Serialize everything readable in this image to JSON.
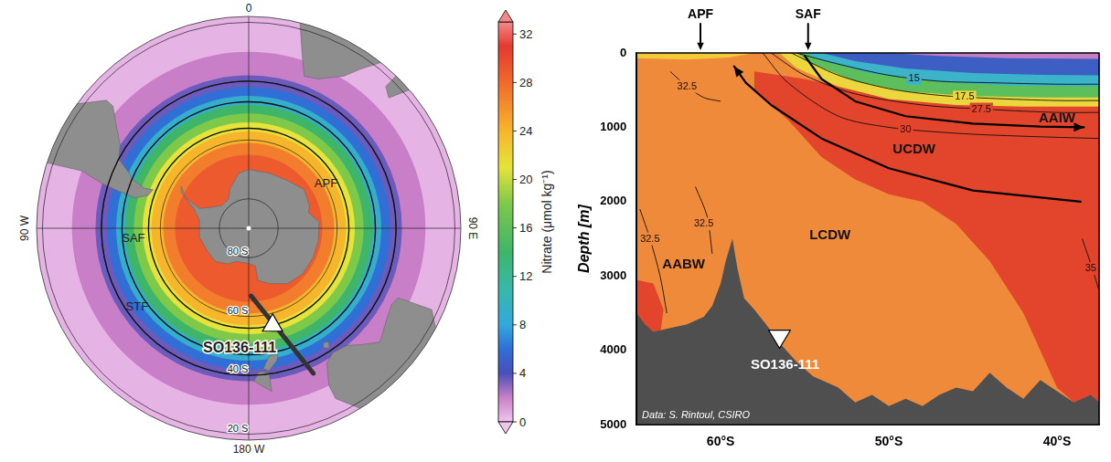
{
  "map": {
    "colorbar": {
      "label": "Nitrate (μmol kg⁻¹)",
      "range": [
        0,
        33
      ],
      "ticks": [
        0,
        4,
        8,
        12,
        16,
        20,
        24,
        28,
        32
      ],
      "colorscale": [
        {
          "value": 0,
          "color": "#f0c6ee"
        },
        {
          "value": 2,
          "color": "#c97fc7"
        },
        {
          "value": 4,
          "color": "#4a4fb8"
        },
        {
          "value": 6,
          "color": "#2f6fd6"
        },
        {
          "value": 8,
          "color": "#33a8dc"
        },
        {
          "value": 11,
          "color": "#37b9a8"
        },
        {
          "value": 14,
          "color": "#3fb56a"
        },
        {
          "value": 18,
          "color": "#7ec84a"
        },
        {
          "value": 21,
          "color": "#e6e33a"
        },
        {
          "value": 24,
          "color": "#f7b52c"
        },
        {
          "value": 28,
          "color": "#f06a2c"
        },
        {
          "value": 31,
          "color": "#e33a2e"
        },
        {
          "value": 33,
          "color": "#f28a8a"
        }
      ]
    },
    "nitrate_rings": [
      {
        "lat": -18,
        "nitrate": 0.5
      },
      {
        "lat": -30,
        "nitrate": 2
      },
      {
        "lat": -38,
        "nitrate": 3.5
      },
      {
        "lat": -42,
        "nitrate": 6
      },
      {
        "lat": -45,
        "nitrate": 9
      },
      {
        "lat": -48,
        "nitrate": 14
      },
      {
        "lat": -51,
        "nitrate": 18
      },
      {
        "lat": -54,
        "nitrate": 21
      },
      {
        "lat": -57,
        "nitrate": 24
      },
      {
        "lat": -61,
        "nitrate": 27
      },
      {
        "lat": -65,
        "nitrate": 29
      }
    ],
    "graticule": {
      "parallels": [
        {
          "lat": -80,
          "label": "80 S"
        },
        {
          "lat": -60,
          "label": "60 S"
        },
        {
          "lat": -40,
          "label": "40 S"
        },
        {
          "lat": -20,
          "label": "20 S"
        }
      ],
      "meridians": [
        {
          "lon": 0,
          "label": "0"
        },
        {
          "lon": 90,
          "label": "90 E"
        },
        {
          "lon": 180,
          "label": "180 W"
        },
        {
          "lon": -90,
          "label": "90 W"
        }
      ]
    },
    "fronts": [
      {
        "label": "APF",
        "lat": -56
      },
      {
        "label": "SAF",
        "lat": -47
      },
      {
        "label": "STF",
        "lat": -40
      }
    ],
    "section_line": {
      "start": {
        "lon": 178,
        "lat": -67
      },
      "end": {
        "lon": 156,
        "lat": -36
      }
    },
    "station": {
      "label": "SO136-111",
      "lon": 166,
      "lat": -56.5
    }
  },
  "chart_data": {
    "type": "section",
    "y_label": "Depth [m]",
    "xlim": [
      -65,
      -37.5
    ],
    "xticks": [
      {
        "value": -60,
        "label": "60°S"
      },
      {
        "value": -50,
        "label": "50°S"
      },
      {
        "value": -40,
        "label": "40°S"
      }
    ],
    "ylim": [
      0,
      5000
    ],
    "yticks": [
      0,
      1000,
      2000,
      3000,
      4000,
      5000
    ],
    "grid": false,
    "fronts": [
      {
        "label": "APF",
        "lat": -61.2
      },
      {
        "label": "SAF",
        "lat": -54.8
      }
    ],
    "regions": [
      {
        "color": "#ef8a3a",
        "points": [
          [
            -65,
            0
          ],
          [
            -37.5,
            0
          ],
          [
            -37.5,
            5000
          ],
          [
            -65,
            5000
          ]
        ]
      },
      {
        "color": "#e2452b",
        "points": [
          [
            -58,
            250
          ],
          [
            -55,
            350
          ],
          [
            -52,
            500
          ],
          [
            -48,
            600
          ],
          [
            -44,
            650
          ],
          [
            -40,
            700
          ],
          [
            -37.5,
            700
          ],
          [
            -37.5,
            5000
          ],
          [
            -40,
            4500
          ],
          [
            -42,
            3500
          ],
          [
            -44,
            2800
          ],
          [
            -46,
            2300
          ],
          [
            -48,
            2000
          ],
          [
            -50,
            1900
          ],
          [
            -52,
            1700
          ],
          [
            -54,
            1400
          ],
          [
            -56,
            900
          ],
          [
            -58,
            500
          ]
        ]
      },
      {
        "color": "#e2452b",
        "points": [
          [
            -65,
            3050
          ],
          [
            -64,
            3100
          ],
          [
            -63.4,
            3450
          ],
          [
            -63.6,
            3800
          ],
          [
            -65,
            3800
          ]
        ]
      },
      {
        "color": "#f3c93a",
        "points": [
          [
            -65,
            0
          ],
          [
            -65,
            70
          ],
          [
            -62,
            90
          ],
          [
            -59.5,
            60
          ],
          [
            -58,
            0
          ]
        ]
      },
      {
        "color": "#ecd63e",
        "points": [
          [
            -56.5,
            0
          ],
          [
            -55.5,
            200
          ],
          [
            -53,
            450
          ],
          [
            -50,
            620
          ],
          [
            -46,
            700
          ],
          [
            -42,
            720
          ],
          [
            -37.5,
            720
          ],
          [
            -37.5,
            0
          ]
        ]
      },
      {
        "color": "#5cbf5c",
        "points": [
          [
            -55.5,
            0
          ],
          [
            -54.5,
            150
          ],
          [
            -52,
            380
          ],
          [
            -49,
            520
          ],
          [
            -45,
            580
          ],
          [
            -41,
            600
          ],
          [
            -37.5,
            600
          ],
          [
            -37.5,
            0
          ]
        ]
      },
      {
        "color": "#3bb3c8",
        "points": [
          [
            -55,
            0
          ],
          [
            -54,
            100
          ],
          [
            -51,
            280
          ],
          [
            -47,
            390
          ],
          [
            -43,
            440
          ],
          [
            -37.5,
            450
          ],
          [
            -37.5,
            0
          ]
        ]
      },
      {
        "color": "#3d5fc4",
        "points": [
          [
            -54,
            0
          ],
          [
            -52,
            110
          ],
          [
            -49,
            210
          ],
          [
            -45,
            270
          ],
          [
            -41,
            295
          ],
          [
            -37.5,
            300
          ],
          [
            -37.5,
            0
          ]
        ]
      },
      {
        "color": "#c57ec5",
        "points": [
          [
            -50,
            0
          ],
          [
            -47,
            40
          ],
          [
            -43,
            70
          ],
          [
            -37.5,
            80
          ],
          [
            -37.5,
            0
          ]
        ]
      }
    ],
    "contours": [
      {
        "label": "15",
        "points": [
          [
            -55.5,
            0
          ],
          [
            -53,
            150
          ],
          [
            -50,
            300
          ],
          [
            -47,
            380
          ],
          [
            -44,
            400
          ],
          [
            -40,
            420
          ],
          [
            -37.5,
            420
          ]
        ],
        "label_at": [
          -48.5,
          345
        ]
      },
      {
        "label": "17.5",
        "points": [
          [
            -55.8,
            0
          ],
          [
            -53,
            300
          ],
          [
            -50,
            480
          ],
          [
            -47,
            570
          ],
          [
            -44,
            610
          ],
          [
            -40,
            640
          ],
          [
            -37.5,
            640
          ]
        ],
        "label_at": [
          -45.5,
          595
        ]
      },
      {
        "label": "27.5",
        "points": [
          [
            -57,
            0
          ],
          [
            -55,
            300
          ],
          [
            -52,
            550
          ],
          [
            -48,
            700
          ],
          [
            -44,
            760
          ],
          [
            -40,
            800
          ],
          [
            -37.5,
            800
          ]
        ],
        "label_at": [
          -44.5,
          755
        ]
      },
      {
        "label": "30",
        "points": [
          [
            -57.5,
            0
          ],
          [
            -56,
            400
          ],
          [
            -53,
            850
          ],
          [
            -50,
            1000
          ],
          [
            -46,
            1080
          ],
          [
            -42,
            1120
          ],
          [
            -37.5,
            1150
          ]
        ],
        "label_at": [
          -49,
          1025
        ]
      },
      {
        "label": "32.5",
        "points": [
          [
            -63,
            250
          ],
          [
            -62,
            450
          ],
          [
            -61,
            600
          ],
          [
            -60,
            650
          ]
        ],
        "label_at": [
          -62,
          450
        ]
      },
      {
        "label": "32.5",
        "points": [
          [
            -64.8,
            2100
          ],
          [
            -64.2,
            2500
          ],
          [
            -63.6,
            3000
          ],
          [
            -63.2,
            3500
          ]
        ],
        "label_at": [
          -64.2,
          2500
        ]
      },
      {
        "label": "32.5",
        "points": [
          [
            -61.5,
            1800
          ],
          [
            -60.8,
            2200
          ],
          [
            -60.5,
            2700
          ]
        ],
        "label_at": [
          -61,
          2300
        ]
      },
      {
        "label": "35",
        "points": [
          [
            -38.5,
            2500
          ],
          [
            -37.9,
            2900
          ],
          [
            -37.5,
            3200
          ]
        ],
        "label_at": [
          -38,
          2900
        ]
      }
    ],
    "circulation": [
      {
        "points": [
          [
            -38.6,
            2000
          ],
          [
            -45,
            1850
          ],
          [
            -50,
            1550
          ],
          [
            -54,
            1150
          ],
          [
            -57,
            700
          ],
          [
            -58.5,
            400
          ],
          [
            -59.2,
            180
          ]
        ]
      },
      {
        "points": [
          [
            -55,
            40
          ],
          [
            -54,
            350
          ],
          [
            -52,
            650
          ],
          [
            -49,
            850
          ],
          [
            -45,
            950
          ],
          [
            -41,
            990
          ],
          [
            -38.4,
            1000
          ]
        ]
      }
    ],
    "water_masses": [
      {
        "label": "AAIW",
        "lat": -40,
        "depth": 880
      },
      {
        "label": "UCDW",
        "lat": -48.5,
        "depth": 1300
      },
      {
        "label": "LCDW",
        "lat": -53.5,
        "depth": 2450
      },
      {
        "label": "AABW",
        "lat": -62.2,
        "depth": 2850
      }
    ],
    "bathymetry": [
      [
        -65,
        3500
      ],
      [
        -64.5,
        3650
      ],
      [
        -64,
        3750
      ],
      [
        -63,
        3700
      ],
      [
        -62,
        3650
      ],
      [
        -61,
        3550
      ],
      [
        -60.5,
        3400
      ],
      [
        -60,
        3100
      ],
      [
        -59.7,
        2800
      ],
      [
        -59.3,
        2500
      ],
      [
        -59,
        2900
      ],
      [
        -58.6,
        3300
      ],
      [
        -58,
        3450
      ],
      [
        -57.3,
        3650
      ],
      [
        -56.5,
        3900
      ],
      [
        -55.5,
        4150
      ],
      [
        -54.5,
        4350
      ],
      [
        -53,
        4500
      ],
      [
        -52,
        4700
      ],
      [
        -51,
        4600
      ],
      [
        -50,
        4750
      ],
      [
        -49,
        4650
      ],
      [
        -48,
        4750
      ],
      [
        -47,
        4600
      ],
      [
        -46,
        4500
      ],
      [
        -45,
        4550
      ],
      [
        -44,
        4300
      ],
      [
        -43,
        4500
      ],
      [
        -42,
        4650
      ],
      [
        -41,
        4400
      ],
      [
        -40,
        4550
      ],
      [
        -39,
        4700
      ],
      [
        -38,
        4600
      ],
      [
        -37.5,
        4700
      ]
    ],
    "station": {
      "label": "SO136-111",
      "lat": -56.5,
      "depth": 3850
    },
    "credit": "Data: S. Rintoul, CSIRO"
  }
}
